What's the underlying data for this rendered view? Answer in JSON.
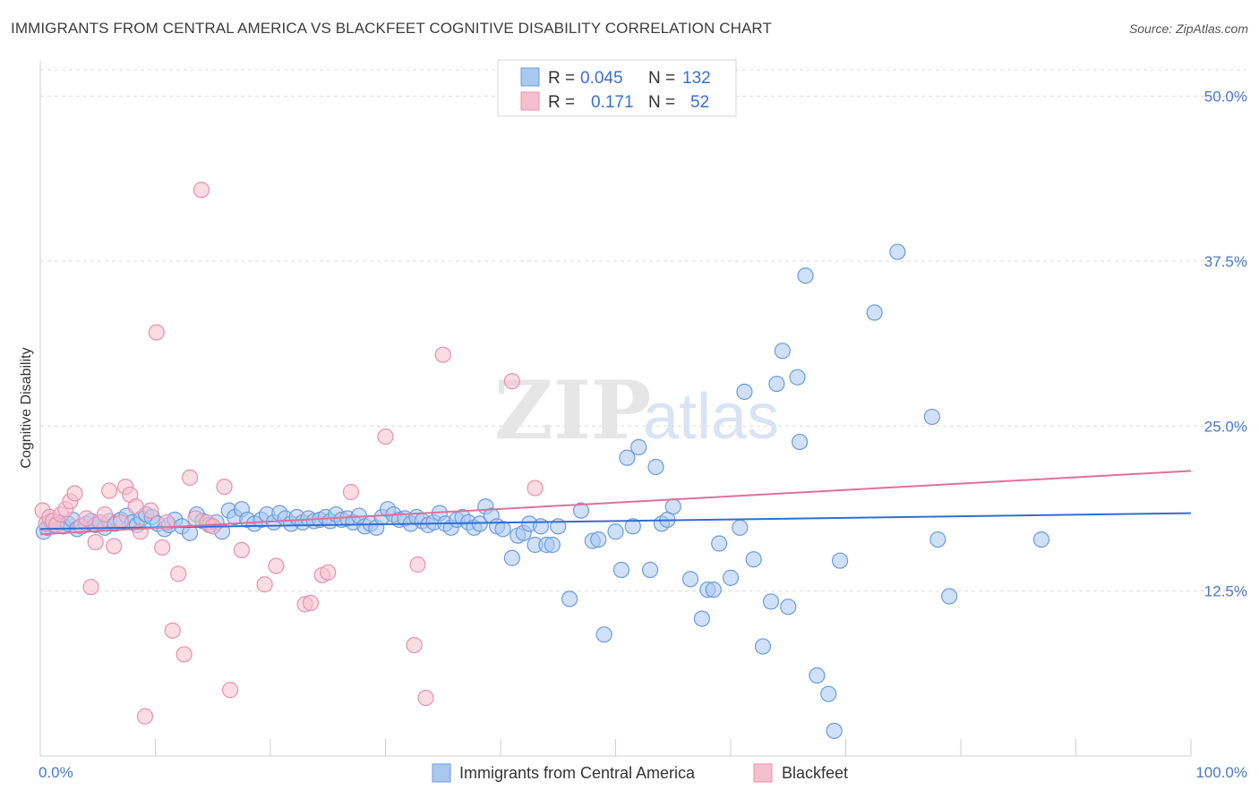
{
  "title": "IMMIGRANTS FROM CENTRAL AMERICA VS BLACKFEET COGNITIVE DISABILITY CORRELATION CHART",
  "source": "Source: ZipAtlas.com",
  "chart_data": {
    "type": "scatter",
    "ylabel": "Cognitive Disability",
    "xlim": [
      0,
      100
    ],
    "ylim": [
      0,
      52
    ],
    "x_tick_labels": [
      "0.0%",
      "100.0%"
    ],
    "y_ticks": [
      12.5,
      25.0,
      37.5,
      50.0
    ],
    "y_tick_labels": [
      "12.5%",
      "25.0%",
      "37.5%",
      "50.0%"
    ],
    "grid": true,
    "legend": {
      "position": "top-center",
      "rows": [
        {
          "r_label": "R =",
          "r_value": "0.045",
          "n_label": "N =",
          "n_value": "132"
        },
        {
          "r_label": "R =",
          "r_value": "0.171",
          "n_label": "N =",
          "n_value": "52"
        }
      ]
    },
    "watermark": {
      "zip": "ZIP",
      "atlas": "atlas"
    },
    "colors": {
      "blue_fill": "#a9c8f0",
      "blue_stroke": "#6a9be0",
      "blue_line": "#2f6fd0",
      "pink_fill": "#f6bfd0",
      "pink_stroke": "#e990ad",
      "pink_line": "#e0709a"
    },
    "series": [
      {
        "name": "Immigrants from Central America",
        "trend": {
          "x": [
            0,
            100
          ],
          "y": [
            17.2,
            18.4
          ]
        },
        "points": [
          [
            0.3,
            17.0
          ],
          [
            0.6,
            17.3
          ],
          [
            0.9,
            17.8
          ],
          [
            1.2,
            17.5
          ],
          [
            1.5,
            17.7
          ],
          [
            2.0,
            17.4
          ],
          [
            2.4,
            17.6
          ],
          [
            2.8,
            17.9
          ],
          [
            3.2,
            17.2
          ],
          [
            3.6,
            17.4
          ],
          [
            4.0,
            17.6
          ],
          [
            4.4,
            17.8
          ],
          [
            4.8,
            17.5
          ],
          [
            5.2,
            17.7
          ],
          [
            5.6,
            17.3
          ],
          [
            6.0,
            17.8
          ],
          [
            6.5,
            17.6
          ],
          [
            7.0,
            17.9
          ],
          [
            7.5,
            18.2
          ],
          [
            8.0,
            17.7
          ],
          [
            8.4,
            17.5
          ],
          [
            8.8,
            18.0
          ],
          [
            9.2,
            18.3
          ],
          [
            9.7,
            18.1
          ],
          [
            10.2,
            17.6
          ],
          [
            10.8,
            17.2
          ],
          [
            11.2,
            17.5
          ],
          [
            11.7,
            17.9
          ],
          [
            12.3,
            17.4
          ],
          [
            13.0,
            16.9
          ],
          [
            13.6,
            18.3
          ],
          [
            14.1,
            17.8
          ],
          [
            14.7,
            17.5
          ],
          [
            15.3,
            17.7
          ],
          [
            15.8,
            17.0
          ],
          [
            16.4,
            18.6
          ],
          [
            16.9,
            18.1
          ],
          [
            17.5,
            18.7
          ],
          [
            18.0,
            17.9
          ],
          [
            18.6,
            17.6
          ],
          [
            19.2,
            17.9
          ],
          [
            19.7,
            18.3
          ],
          [
            20.3,
            17.7
          ],
          [
            20.8,
            18.4
          ],
          [
            21.3,
            18.0
          ],
          [
            21.8,
            17.6
          ],
          [
            22.3,
            18.1
          ],
          [
            22.8,
            17.7
          ],
          [
            23.3,
            18.0
          ],
          [
            23.8,
            17.8
          ],
          [
            24.3,
            17.9
          ],
          [
            24.8,
            18.1
          ],
          [
            25.2,
            17.8
          ],
          [
            25.7,
            18.3
          ],
          [
            26.2,
            17.9
          ],
          [
            26.7,
            18.0
          ],
          [
            27.2,
            17.7
          ],
          [
            27.7,
            18.2
          ],
          [
            28.2,
            17.4
          ],
          [
            28.7,
            17.6
          ],
          [
            29.2,
            17.3
          ],
          [
            29.7,
            18.1
          ],
          [
            30.2,
            18.7
          ],
          [
            30.7,
            18.3
          ],
          [
            31.2,
            17.9
          ],
          [
            31.7,
            18.0
          ],
          [
            32.2,
            17.6
          ],
          [
            32.7,
            18.1
          ],
          [
            33.2,
            17.8
          ],
          [
            33.7,
            17.5
          ],
          [
            34.2,
            17.7
          ],
          [
            34.7,
            18.4
          ],
          [
            35.2,
            17.6
          ],
          [
            35.7,
            17.3
          ],
          [
            36.2,
            17.9
          ],
          [
            36.7,
            18.1
          ],
          [
            37.2,
            17.7
          ],
          [
            37.7,
            17.3
          ],
          [
            38.2,
            17.6
          ],
          [
            38.7,
            18.9
          ],
          [
            39.2,
            18.2
          ],
          [
            39.7,
            17.4
          ],
          [
            40.2,
            17.2
          ],
          [
            41.0,
            15.0
          ],
          [
            41.5,
            16.7
          ],
          [
            42.0,
            16.9
          ],
          [
            42.5,
            17.6
          ],
          [
            43.0,
            16.0
          ],
          [
            43.5,
            17.4
          ],
          [
            44.0,
            16.0
          ],
          [
            44.5,
            16.0
          ],
          [
            45.0,
            17.4
          ],
          [
            46.0,
            11.9
          ],
          [
            47.0,
            18.6
          ],
          [
            48.0,
            16.3
          ],
          [
            48.5,
            16.4
          ],
          [
            49.0,
            9.2
          ],
          [
            50.0,
            17.0
          ],
          [
            50.5,
            14.1
          ],
          [
            51.0,
            22.6
          ],
          [
            51.5,
            17.4
          ],
          [
            52.0,
            23.4
          ],
          [
            53.0,
            14.1
          ],
          [
            53.5,
            21.9
          ],
          [
            54.0,
            17.6
          ],
          [
            54.5,
            17.9
          ],
          [
            55.0,
            18.9
          ],
          [
            56.5,
            13.4
          ],
          [
            57.5,
            10.4
          ],
          [
            58.0,
            12.6
          ],
          [
            58.5,
            12.6
          ],
          [
            59.0,
            16.1
          ],
          [
            60.0,
            13.5
          ],
          [
            60.8,
            17.3
          ],
          [
            61.2,
            27.6
          ],
          [
            62.0,
            14.9
          ],
          [
            62.8,
            8.3
          ],
          [
            63.5,
            11.7
          ],
          [
            64.0,
            28.2
          ],
          [
            64.5,
            30.7
          ],
          [
            65.0,
            11.3
          ],
          [
            65.8,
            28.7
          ],
          [
            66.0,
            23.8
          ],
          [
            66.5,
            36.4
          ],
          [
            67.5,
            6.1
          ],
          [
            68.5,
            4.7
          ],
          [
            69.0,
            1.9
          ],
          [
            69.5,
            14.8
          ],
          [
            72.5,
            33.6
          ],
          [
            74.5,
            38.2
          ],
          [
            77.5,
            25.7
          ],
          [
            78.0,
            16.4
          ],
          [
            79.0,
            12.1
          ],
          [
            87.0,
            16.4
          ]
        ]
      },
      {
        "name": "Blackfeet",
        "trend": {
          "x": [
            0,
            100
          ],
          "y": [
            16.8,
            21.6
          ]
        },
        "points": [
          [
            0.2,
            18.6
          ],
          [
            0.5,
            17.6
          ],
          [
            0.8,
            18.1
          ],
          [
            1.1,
            17.8
          ],
          [
            1.4,
            17.5
          ],
          [
            1.8,
            18.3
          ],
          [
            2.2,
            18.7
          ],
          [
            2.6,
            19.3
          ],
          [
            3.0,
            19.9
          ],
          [
            3.5,
            17.4
          ],
          [
            4.0,
            18.0
          ],
          [
            4.4,
            12.8
          ],
          [
            4.8,
            16.2
          ],
          [
            5.2,
            17.7
          ],
          [
            5.6,
            18.3
          ],
          [
            6.0,
            20.1
          ],
          [
            6.4,
            15.9
          ],
          [
            7.0,
            17.7
          ],
          [
            7.4,
            20.4
          ],
          [
            7.8,
            19.8
          ],
          [
            8.3,
            18.9
          ],
          [
            8.7,
            17.0
          ],
          [
            9.1,
            3.0
          ],
          [
            9.6,
            18.6
          ],
          [
            10.1,
            32.1
          ],
          [
            10.6,
            15.8
          ],
          [
            11.0,
            17.7
          ],
          [
            11.5,
            9.5
          ],
          [
            12.0,
            13.8
          ],
          [
            12.5,
            7.7
          ],
          [
            13.0,
            21.1
          ],
          [
            13.5,
            18.0
          ],
          [
            14.0,
            42.9
          ],
          [
            14.5,
            17.7
          ],
          [
            15.0,
            17.4
          ],
          [
            16.0,
            20.4
          ],
          [
            16.5,
            5.0
          ],
          [
            17.5,
            15.6
          ],
          [
            19.5,
            13.0
          ],
          [
            20.5,
            14.4
          ],
          [
            23.0,
            11.5
          ],
          [
            23.5,
            11.6
          ],
          [
            24.5,
            13.7
          ],
          [
            25.0,
            13.9
          ],
          [
            27.0,
            20.0
          ],
          [
            30.0,
            24.2
          ],
          [
            32.5,
            8.4
          ],
          [
            32.8,
            14.5
          ],
          [
            33.5,
            4.4
          ],
          [
            35.0,
            30.4
          ],
          [
            41.0,
            28.4
          ],
          [
            43.0,
            20.3
          ]
        ]
      }
    ],
    "bottom_legend": [
      "Immigrants from Central America",
      "Blackfeet"
    ]
  }
}
